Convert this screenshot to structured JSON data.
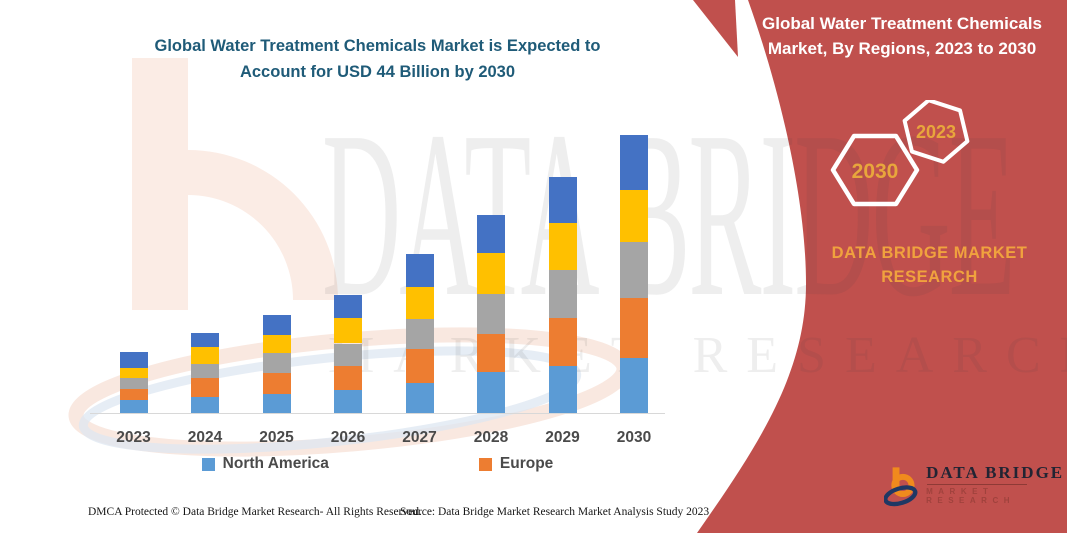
{
  "page": {
    "background": "#ffffff",
    "accent_red": "#C0504D",
    "title_color": "#1F5B78"
  },
  "header": {
    "title_line1": "Global Water Treatment Chemicals Market is Expected to",
    "title_line2": "Account for USD 44 Billion by 2030"
  },
  "side_panel": {
    "title_line1": "Global Water Treatment Chemicals",
    "title_line2": "Market, By Regions, 2023 to 2030",
    "hexagon_badge_large": "2030",
    "hexagon_badge_small": "2023",
    "badge_text_color": "#E8A63C",
    "brand_line1": "DATA BRIDGE MARKET",
    "brand_line2": "RESEARCH"
  },
  "watermark": {
    "line1": "DATA BRIDGE",
    "line2": "MARKET RESEARCH"
  },
  "chart_data": {
    "type": "bar",
    "stacked": true,
    "title": "Global Water Treatment Chemicals Market is Expected to Account for USD 44 Billion by 2030",
    "categories": [
      "2023",
      "2024",
      "2025",
      "2026",
      "2027",
      "2028",
      "2029",
      "2030"
    ],
    "values_unit": "USD Billion (scale inferred from title: 2030 total = 44)",
    "series": [
      {
        "name": "North America",
        "color": "#5B9BD5",
        "values": [
          2.1,
          2.5,
          3.0,
          3.6,
          4.7,
          6.5,
          7.4,
          8.7
        ]
      },
      {
        "name": "Europe",
        "color": "#ED7D31",
        "values": [
          1.7,
          3.0,
          3.3,
          3.8,
          5.5,
          6.0,
          7.6,
          9.5
        ]
      },
      {
        "name": "",
        "color": "#A5A5A5",
        "values": [
          1.7,
          2.2,
          3.2,
          3.6,
          4.7,
          6.3,
          7.6,
          8.9
        ]
      },
      {
        "name": "",
        "color": "#FFC000",
        "values": [
          1.7,
          2.7,
          2.8,
          4.1,
          5.1,
          6.5,
          7.4,
          8.2
        ]
      },
      {
        "name": "",
        "color": "#4472C4",
        "values": [
          2.4,
          2.2,
          3.2,
          3.5,
          5.2,
          6.0,
          7.4,
          8.7
        ]
      }
    ],
    "totals": [
      9.6,
      12.6,
      15.5,
      18.6,
      25.2,
      31.3,
      37.4,
      44.0
    ],
    "legend": [
      {
        "label": "North America",
        "color": "#5B9BD5"
      },
      {
        "label": "Europe",
        "color": "#ED7D31"
      }
    ],
    "legend_position": "bottom",
    "y_axis_visible": false,
    "gridlines": false
  },
  "footer": {
    "dmca": "DMCA Protected © Data Bridge Market Research-  All Rights Reserved.",
    "source": "Source: Data Bridge Market Research  Market Analysis Study 2023"
  },
  "bottom_logo": {
    "name": "DATA BRIDGE",
    "subtitle": "MARKET RESEARCH"
  }
}
